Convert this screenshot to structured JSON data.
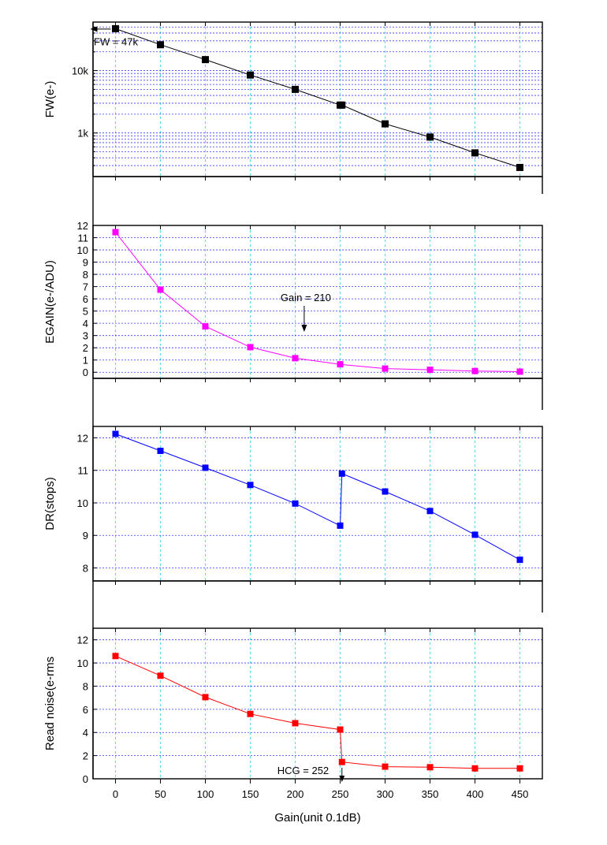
{
  "chart_data": {
    "type": "line",
    "xlabel": "Gain(unit 0.1dB)",
    "x_ticks": [
      0,
      50,
      100,
      150,
      200,
      250,
      300,
      350,
      400,
      450
    ],
    "xlim": [
      -25,
      475
    ],
    "panels": [
      {
        "id": "fw",
        "ylabel": "FW(e-)",
        "scale": "log",
        "ylim": [
          200,
          60000
        ],
        "y_tick_labels": [
          {
            "value": 1000,
            "label": "1k"
          },
          {
            "value": 10000,
            "label": "10k"
          }
        ],
        "color": "#000000",
        "x": [
          0,
          50,
          100,
          150,
          200,
          250,
          252,
          300,
          350,
          400,
          450
        ],
        "y": [
          47000,
          26000,
          15000,
          8500,
          5000,
          2800,
          2800,
          1400,
          860,
          480,
          280
        ],
        "annotation": {
          "text": "FW = 47k",
          "x": 0,
          "y": 47000
        }
      },
      {
        "id": "egain",
        "ylabel": "EGAIN(e-/ADU)",
        "scale": "linear",
        "ylim": [
          -0.5,
          12.0
        ],
        "y_ticks": [
          0,
          1,
          2,
          3,
          4,
          5,
          6,
          7,
          8,
          9,
          10,
          11,
          12
        ],
        "color": "#ff00ff",
        "x": [
          0,
          50,
          100,
          150,
          200,
          250,
          300,
          350,
          400,
          450
        ],
        "y": [
          11.45,
          6.75,
          3.75,
          2.05,
          1.15,
          0.65,
          0.3,
          0.2,
          0.1,
          0.05
        ],
        "annotation": {
          "text": "Gain = 210",
          "x": 210,
          "y": 1.0
        }
      },
      {
        "id": "dr",
        "ylabel": "DR(stops)",
        "scale": "linear",
        "ylim": [
          7.6,
          12.35
        ],
        "y_ticks": [
          8,
          9,
          10,
          11,
          12
        ],
        "color": "#0000ff",
        "x": [
          0,
          50,
          100,
          150,
          200,
          250,
          252,
          300,
          350,
          400,
          450
        ],
        "y": [
          12.12,
          11.6,
          11.08,
          10.55,
          9.98,
          9.3,
          10.9,
          10.35,
          9.75,
          9.02,
          8.25
        ]
      },
      {
        "id": "rn",
        "ylabel": "Read noise(e-rms",
        "scale": "linear",
        "ylim": [
          0,
          13
        ],
        "y_ticks": [
          0,
          2,
          4,
          6,
          8,
          10,
          12
        ],
        "color": "#ff0000",
        "x": [
          0,
          50,
          100,
          150,
          200,
          250,
          252,
          300,
          350,
          400,
          450
        ],
        "y": [
          10.6,
          8.9,
          7.05,
          5.6,
          4.8,
          4.25,
          1.45,
          1.05,
          1.0,
          0.9,
          0.9
        ],
        "annotation": {
          "text": "HCG = 252",
          "x": 252,
          "y": 0
        }
      }
    ]
  }
}
